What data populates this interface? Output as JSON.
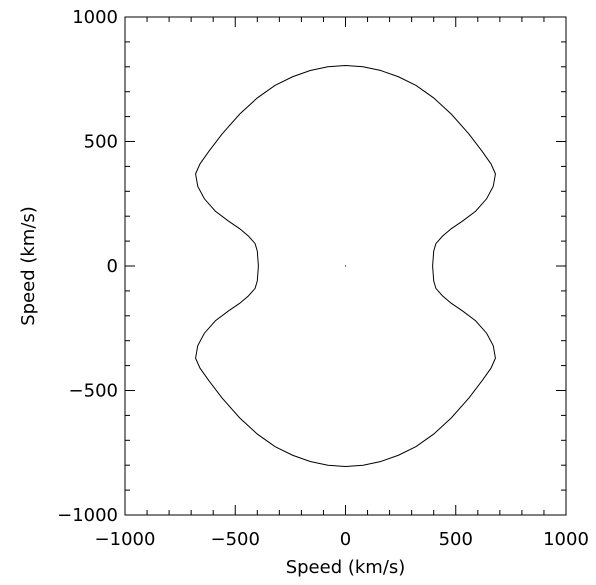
{
  "chart_data": {
    "type": "line",
    "title": "",
    "xlabel": "Speed (km/s)",
    "ylabel": "Speed (km/s)",
    "xlim": [
      -1000,
      1000
    ],
    "ylim": [
      -1000,
      1000
    ],
    "grid": false,
    "legend": "none",
    "x_ticks": [
      -1000,
      -500,
      0,
      500,
      1000
    ],
    "y_ticks": [
      -1000,
      -500,
      0,
      500,
      1000
    ],
    "x_tick_labels": [
      "−1000",
      "−500",
      "0",
      "500",
      "1000"
    ],
    "y_tick_labels": [
      "−1000",
      "−500",
      "0",
      "500",
      "1000"
    ],
    "series": [
      {
        "points": [
          [
            0,
            805
          ],
          [
            80,
            800
          ],
          [
            160,
            785
          ],
          [
            240,
            760
          ],
          [
            320,
            725
          ],
          [
            400,
            675
          ],
          [
            480,
            610
          ],
          [
            560,
            530
          ],
          [
            620,
            460
          ],
          [
            660,
            410
          ],
          [
            680,
            370
          ],
          [
            670,
            320
          ],
          [
            640,
            270
          ],
          [
            590,
            220
          ],
          [
            530,
            180
          ],
          [
            480,
            150
          ],
          [
            440,
            120
          ],
          [
            410,
            90
          ],
          [
            400,
            60
          ],
          [
            395,
            0
          ],
          [
            400,
            -60
          ],
          [
            410,
            -90
          ],
          [
            440,
            -120
          ],
          [
            480,
            -150
          ],
          [
            530,
            -180
          ],
          [
            590,
            -220
          ],
          [
            640,
            -270
          ],
          [
            670,
            -320
          ],
          [
            680,
            -370
          ],
          [
            660,
            -410
          ],
          [
            620,
            -460
          ],
          [
            560,
            -530
          ],
          [
            480,
            -610
          ],
          [
            400,
            -675
          ],
          [
            320,
            -725
          ],
          [
            240,
            -760
          ],
          [
            160,
            -785
          ],
          [
            80,
            -800
          ],
          [
            0,
            -805
          ],
          [
            -80,
            -800
          ],
          [
            -160,
            -785
          ],
          [
            -240,
            -760
          ],
          [
            -320,
            -725
          ],
          [
            -400,
            -675
          ],
          [
            -480,
            -610
          ],
          [
            -560,
            -530
          ],
          [
            -620,
            -460
          ],
          [
            -660,
            -410
          ],
          [
            -680,
            -370
          ],
          [
            -670,
            -320
          ],
          [
            -640,
            -270
          ],
          [
            -590,
            -220
          ],
          [
            -530,
            -180
          ],
          [
            -480,
            -150
          ],
          [
            -440,
            -120
          ],
          [
            -410,
            -90
          ],
          [
            -400,
            -60
          ],
          [
            -395,
            0
          ],
          [
            -400,
            60
          ],
          [
            -410,
            90
          ],
          [
            -440,
            120
          ],
          [
            -480,
            150
          ],
          [
            -530,
            180
          ],
          [
            -590,
            220
          ],
          [
            -640,
            270
          ],
          [
            -670,
            320
          ],
          [
            -680,
            370
          ],
          [
            -660,
            410
          ],
          [
            -620,
            460
          ],
          [
            -560,
            530
          ],
          [
            -480,
            610
          ],
          [
            -400,
            675
          ],
          [
            -320,
            725
          ],
          [
            -240,
            760
          ],
          [
            -160,
            785
          ],
          [
            -80,
            800
          ],
          [
            0,
            805
          ]
        ]
      }
    ],
    "markers": [
      {
        "x": 0,
        "y": 0
      }
    ]
  }
}
